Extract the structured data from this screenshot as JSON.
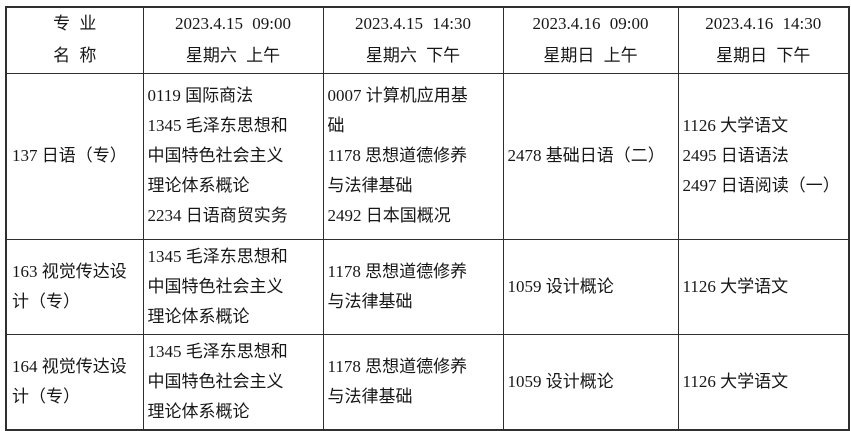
{
  "table": {
    "header": {
      "major_title": [
        "专 业",
        "名 称"
      ],
      "sessions": [
        {
          "datetime": "2023.4.15 09:00",
          "day": "星期六 上午"
        },
        {
          "datetime": "2023.4.15 14:30",
          "day": "星期六 下午"
        },
        {
          "datetime": "2023.4.16 09:00",
          "day": "星期日 上午"
        },
        {
          "datetime": "2023.4.16 14:30",
          "day": "星期日 下午"
        }
      ]
    },
    "rows": [
      {
        "major": "137 日语（专）",
        "sessions": [
          [
            "0119 国际商法",
            "1345 毛泽东思想和中国特色社会主义理论体系概论",
            "2234 日语商贸实务"
          ],
          [
            "0007 计算机应用基础",
            "1178 思想道德修养与法律基础",
            "2492 日本国概况"
          ],
          [
            "2478 基础日语（二）"
          ],
          [
            "1126 大学语文",
            "2495 日语语法",
            "2497 日语阅读（一）"
          ]
        ]
      },
      {
        "major": "163 视觉传达设计（专）",
        "sessions": [
          [
            "1345 毛泽东思想和中国特色社会主义理论体系概论"
          ],
          [
            "1178 思想道德修养与法律基础"
          ],
          [
            "1059 设计概论"
          ],
          [
            "1126 大学语文"
          ]
        ]
      },
      {
        "major": "164 视觉传达设计（专）",
        "sessions": [
          [
            "1345 毛泽东思想和中国特色社会主义理论体系概论"
          ],
          [
            "1178 思想道德修养与法律基础"
          ],
          [
            "1059 设计概论"
          ],
          [
            "1126 大学语文"
          ]
        ]
      }
    ],
    "colors": {
      "border": "#2f2f2f",
      "text": "#161616",
      "background": "#ffffff"
    }
  }
}
